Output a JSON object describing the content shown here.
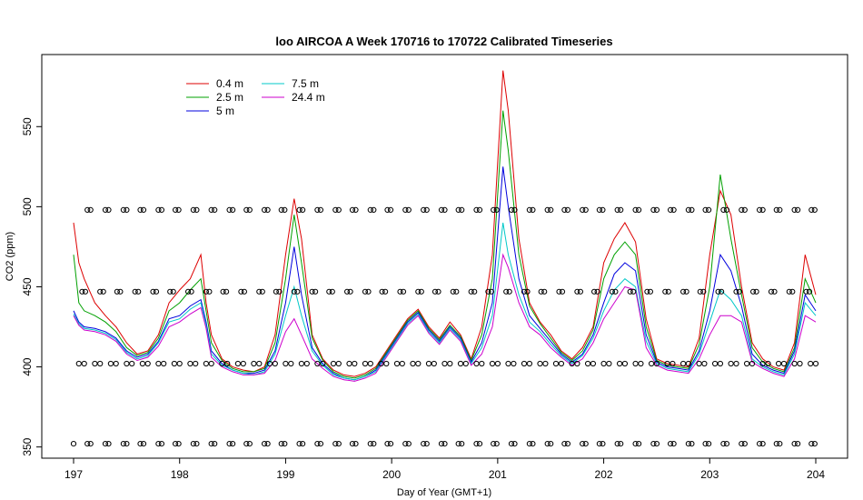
{
  "chart_data": {
    "type": "line",
    "title": "loo AIRCOA A  Week 170716 to 170722  Calibrated Timeseries",
    "xlabel": "Day of Year (GMT+1)",
    "ylabel": "CO2 (ppm)",
    "xlim": [
      196.7,
      204.3
    ],
    "ylim": [
      343,
      595
    ],
    "xticks": [
      197,
      198,
      199,
      200,
      201,
      202,
      203,
      204
    ],
    "yticks": [
      350,
      400,
      450,
      500,
      550
    ],
    "legend": {
      "placement": "top-left",
      "columns": [
        [
          "0.4 m",
          "2.5 m",
          "5 m"
        ],
        [
          "7.5 m",
          "24.4 m"
        ]
      ]
    },
    "series": [
      {
        "name": "0.4 m",
        "color": "#dd0000",
        "x": [
          197.0,
          197.05,
          197.1,
          197.2,
          197.3,
          197.4,
          197.5,
          197.6,
          197.7,
          197.8,
          197.9,
          198.0,
          198.1,
          198.2,
          198.25,
          198.3,
          198.4,
          198.5,
          198.6,
          198.7,
          198.8,
          198.9,
          199.0,
          199.08,
          199.15,
          199.25,
          199.35,
          199.45,
          199.55,
          199.65,
          199.75,
          199.85,
          199.95,
          200.05,
          200.15,
          200.25,
          200.35,
          200.45,
          200.55,
          200.65,
          200.75,
          200.85,
          200.95,
          201.05,
          201.1,
          201.2,
          201.3,
          201.4,
          201.5,
          201.6,
          201.7,
          201.8,
          201.9,
          202.0,
          202.1,
          202.2,
          202.3,
          202.4,
          202.5,
          202.6,
          202.7,
          202.8,
          202.9,
          203.0,
          203.1,
          203.2,
          203.3,
          203.4,
          203.5,
          203.6,
          203.7,
          203.8,
          203.9,
          204.0
        ],
        "y": [
          490,
          465,
          455,
          440,
          432,
          425,
          415,
          408,
          410,
          420,
          440,
          448,
          455,
          470,
          440,
          420,
          405,
          400,
          398,
          397,
          400,
          420,
          470,
          505,
          480,
          420,
          405,
          398,
          395,
          394,
          396,
          400,
          410,
          420,
          430,
          436,
          425,
          418,
          428,
          420,
          405,
          425,
          470,
          585,
          560,
          480,
          440,
          428,
          420,
          410,
          405,
          412,
          425,
          465,
          480,
          490,
          478,
          430,
          405,
          402,
          401,
          400,
          418,
          470,
          510,
          495,
          450,
          415,
          405,
          400,
          398,
          415,
          470,
          445
        ]
      },
      {
        "name": "2.5 m",
        "color": "#00a000",
        "x": [
          197.0,
          197.05,
          197.1,
          197.2,
          197.3,
          197.4,
          197.5,
          197.6,
          197.7,
          197.8,
          197.9,
          198.0,
          198.1,
          198.2,
          198.25,
          198.3,
          198.4,
          198.5,
          198.6,
          198.7,
          198.8,
          198.9,
          199.0,
          199.08,
          199.15,
          199.25,
          199.35,
          199.45,
          199.55,
          199.65,
          199.75,
          199.85,
          199.95,
          200.05,
          200.15,
          200.25,
          200.35,
          200.45,
          200.55,
          200.65,
          200.75,
          200.85,
          200.95,
          201.05,
          201.1,
          201.2,
          201.3,
          201.4,
          201.5,
          201.6,
          201.7,
          201.8,
          201.9,
          202.0,
          202.1,
          202.2,
          202.3,
          202.4,
          202.5,
          202.6,
          202.7,
          202.8,
          202.9,
          203.0,
          203.1,
          203.2,
          203.3,
          203.4,
          203.5,
          203.6,
          203.7,
          203.8,
          203.9,
          204.0
        ],
        "y": [
          470,
          440,
          435,
          432,
          428,
          422,
          412,
          407,
          409,
          418,
          435,
          440,
          448,
          455,
          435,
          415,
          404,
          399,
          397,
          397,
          399,
          415,
          455,
          495,
          465,
          418,
          404,
          397,
          394,
          393,
          395,
          399,
          409,
          419,
          429,
          435,
          424,
          417,
          426,
          419,
          404,
          420,
          455,
          560,
          535,
          470,
          438,
          427,
          418,
          409,
          404,
          410,
          423,
          455,
          470,
          478,
          470,
          425,
          404,
          401,
          400,
          399,
          414,
          450,
          520,
          480,
          445,
          412,
          403,
          399,
          397,
          412,
          455,
          440
        ]
      },
      {
        "name": "5 m",
        "color": "#0000dd",
        "x": [
          197.0,
          197.05,
          197.1,
          197.2,
          197.3,
          197.4,
          197.5,
          197.6,
          197.7,
          197.8,
          197.9,
          198.0,
          198.1,
          198.2,
          198.25,
          198.3,
          198.4,
          198.5,
          198.6,
          198.7,
          198.8,
          198.9,
          199.0,
          199.08,
          199.15,
          199.25,
          199.35,
          199.45,
          199.55,
          199.65,
          199.75,
          199.85,
          199.95,
          200.05,
          200.15,
          200.25,
          200.35,
          200.45,
          200.55,
          200.65,
          200.75,
          200.85,
          200.95,
          201.05,
          201.1,
          201.2,
          201.3,
          201.4,
          201.5,
          201.6,
          201.7,
          201.8,
          201.9,
          202.0,
          202.1,
          202.2,
          202.3,
          202.4,
          202.5,
          202.6,
          202.7,
          202.8,
          202.9,
          203.0,
          203.1,
          203.2,
          203.3,
          203.4,
          203.5,
          203.6,
          203.7,
          203.8,
          203.9,
          204.0
        ],
        "y": [
          435,
          428,
          425,
          424,
          422,
          418,
          410,
          406,
          408,
          416,
          430,
          432,
          438,
          442,
          428,
          410,
          402,
          398,
          396,
          396,
          398,
          410,
          440,
          475,
          445,
          412,
          402,
          396,
          393,
          392,
          394,
          398,
          408,
          418,
          428,
          434,
          423,
          416,
          425,
          418,
          403,
          415,
          440,
          525,
          500,
          455,
          432,
          424,
          416,
          408,
          403,
          408,
          420,
          440,
          458,
          465,
          460,
          420,
          403,
          400,
          399,
          398,
          410,
          435,
          470,
          460,
          438,
          408,
          401,
          398,
          396,
          410,
          445,
          435
        ]
      },
      {
        "name": "7.5 m",
        "color": "#00c8c8",
        "x": [
          197.0,
          197.05,
          197.1,
          197.2,
          197.3,
          197.4,
          197.5,
          197.6,
          197.7,
          197.8,
          197.9,
          198.0,
          198.1,
          198.2,
          198.25,
          198.3,
          198.4,
          198.5,
          198.6,
          198.7,
          198.8,
          198.9,
          199.0,
          199.08,
          199.15,
          199.25,
          199.35,
          199.45,
          199.55,
          199.65,
          199.75,
          199.85,
          199.95,
          200.05,
          200.15,
          200.25,
          200.35,
          200.45,
          200.55,
          200.65,
          200.75,
          200.85,
          200.95,
          201.05,
          201.1,
          201.2,
          201.3,
          201.4,
          201.5,
          201.6,
          201.7,
          201.8,
          201.9,
          202.0,
          202.1,
          202.2,
          202.3,
          202.4,
          202.5,
          202.6,
          202.7,
          202.8,
          202.9,
          203.0,
          203.1,
          203.2,
          203.3,
          203.4,
          203.5,
          203.6,
          203.7,
          203.8,
          203.9,
          204.0
        ],
        "y": [
          433,
          427,
          424,
          423,
          421,
          417,
          409,
          405,
          407,
          415,
          428,
          430,
          436,
          440,
          426,
          408,
          401,
          398,
          396,
          395,
          397,
          408,
          432,
          450,
          432,
          410,
          401,
          395,
          393,
          392,
          394,
          397,
          407,
          417,
          427,
          433,
          422,
          415,
          424,
          417,
          402,
          412,
          432,
          490,
          470,
          445,
          428,
          422,
          414,
          407,
          402,
          407,
          418,
          435,
          448,
          455,
          450,
          416,
          402,
          399,
          398,
          397,
          408,
          428,
          448,
          442,
          432,
          405,
          400,
          397,
          395,
          408,
          440,
          432
        ]
      },
      {
        "name": "24.4 m",
        "color": "#cc00cc",
        "x": [
          197.0,
          197.05,
          197.1,
          197.2,
          197.3,
          197.4,
          197.5,
          197.6,
          197.7,
          197.8,
          197.9,
          198.0,
          198.1,
          198.2,
          198.25,
          198.3,
          198.4,
          198.5,
          198.6,
          198.7,
          198.8,
          198.9,
          199.0,
          199.08,
          199.15,
          199.25,
          199.35,
          199.45,
          199.55,
          199.65,
          199.75,
          199.85,
          199.95,
          200.05,
          200.15,
          200.25,
          200.35,
          200.45,
          200.55,
          200.65,
          200.75,
          200.85,
          200.95,
          201.05,
          201.1,
          201.2,
          201.3,
          201.4,
          201.5,
          201.6,
          201.7,
          201.8,
          201.9,
          202.0,
          202.1,
          202.2,
          202.3,
          202.4,
          202.5,
          202.6,
          202.7,
          202.8,
          202.9,
          203.0,
          203.1,
          203.2,
          203.3,
          203.4,
          203.5,
          203.6,
          203.7,
          203.8,
          203.9,
          204.0
        ],
        "y": [
          432,
          426,
          423,
          422,
          420,
          416,
          408,
          404,
          406,
          413,
          425,
          428,
          433,
          437,
          424,
          406,
          400,
          397,
          395,
          395,
          396,
          404,
          422,
          430,
          420,
          405,
          399,
          394,
          392,
          391,
          393,
          396,
          406,
          416,
          426,
          432,
          421,
          414,
          423,
          416,
          401,
          408,
          425,
          470,
          462,
          440,
          425,
          420,
          412,
          406,
          401,
          405,
          415,
          430,
          440,
          450,
          448,
          412,
          401,
          398,
          397,
          396,
          405,
          420,
          432,
          432,
          428,
          403,
          399,
          396,
          394,
          405,
          432,
          428
        ]
      }
    ],
    "point_rows": [
      {
        "y": 498,
        "x": [
          197.13,
          197.16,
          197.3,
          197.33,
          197.47,
          197.5,
          197.63,
          197.66,
          197.8,
          197.83,
          197.96,
          197.99,
          198.13,
          198.16,
          198.3,
          198.33,
          198.47,
          198.5,
          198.63,
          198.66,
          198.8,
          198.83,
          198.96,
          198.99,
          199.13,
          199.16,
          199.3,
          199.33,
          199.47,
          199.5,
          199.63,
          199.66,
          199.8,
          199.83,
          199.96,
          199.99,
          200.13,
          200.16,
          200.3,
          200.33,
          200.47,
          200.5,
          200.63,
          200.66,
          200.8,
          200.83,
          200.96,
          200.99,
          201.13,
          201.16,
          201.3,
          201.33,
          201.47,
          201.5,
          201.63,
          201.66,
          201.8,
          201.83,
          201.96,
          201.99,
          202.13,
          202.16,
          202.3,
          202.33,
          202.47,
          202.5,
          202.63,
          202.66,
          202.8,
          202.83,
          202.96,
          202.99,
          203.13,
          203.16,
          203.3,
          203.33,
          203.47,
          203.5,
          203.63,
          203.66,
          203.8,
          203.83,
          203.96,
          203.99
        ]
      },
      {
        "y": 447,
        "x": [
          197.08,
          197.11,
          197.25,
          197.28,
          197.41,
          197.44,
          197.58,
          197.61,
          197.75,
          197.78,
          197.91,
          197.94,
          198.08,
          198.11,
          198.25,
          198.28,
          198.41,
          198.44,
          198.58,
          198.61,
          198.75,
          198.78,
          198.91,
          198.94,
          199.08,
          199.11,
          199.25,
          199.28,
          199.41,
          199.44,
          199.58,
          199.61,
          199.75,
          199.78,
          199.91,
          199.94,
          200.08,
          200.11,
          200.25,
          200.28,
          200.41,
          200.44,
          200.58,
          200.61,
          200.75,
          200.78,
          200.91,
          200.94,
          201.08,
          201.11,
          201.25,
          201.28,
          201.41,
          201.44,
          201.58,
          201.61,
          201.75,
          201.78,
          201.91,
          201.94,
          202.08,
          202.11,
          202.25,
          202.28,
          202.41,
          202.44,
          202.58,
          202.61,
          202.75,
          202.78,
          202.91,
          202.94,
          203.08,
          203.11,
          203.25,
          203.28,
          203.41,
          203.44,
          203.58,
          203.61,
          203.75,
          203.78,
          203.91,
          203.94
        ]
      },
      {
        "y": 402,
        "x": [
          197.05,
          197.1,
          197.2,
          197.25,
          197.35,
          197.4,
          197.5,
          197.55,
          197.65,
          197.7,
          197.8,
          197.85,
          197.95,
          198.0,
          198.1,
          198.15,
          198.25,
          198.3,
          198.4,
          198.45,
          198.55,
          198.6,
          198.7,
          198.75,
          198.85,
          198.9,
          199.0,
          199.05,
          199.15,
          199.2,
          199.3,
          199.35,
          199.45,
          199.5,
          199.6,
          199.65,
          199.75,
          199.8,
          199.9,
          199.95,
          200.05,
          200.1,
          200.2,
          200.25,
          200.35,
          200.4,
          200.5,
          200.55,
          200.65,
          200.7,
          200.8,
          200.85,
          200.95,
          201.0,
          201.1,
          201.15,
          201.25,
          201.3,
          201.4,
          201.45,
          201.55,
          201.6,
          201.7,
          201.75,
          201.85,
          201.9,
          202.0,
          202.05,
          202.15,
          202.2,
          202.3,
          202.35,
          202.45,
          202.5,
          202.6,
          202.65,
          202.75,
          202.8,
          202.9,
          202.95,
          203.05,
          203.1,
          203.2,
          203.25,
          203.35,
          203.4,
          203.5,
          203.55,
          203.65,
          203.7,
          203.8,
          203.85,
          203.95,
          204.0
        ]
      },
      {
        "y": 352,
        "x": [
          197.0,
          197.13,
          197.16,
          197.3,
          197.33,
          197.47,
          197.5,
          197.63,
          197.66,
          197.8,
          197.83,
          197.96,
          197.99,
          198.13,
          198.16,
          198.3,
          198.33,
          198.47,
          198.5,
          198.63,
          198.66,
          198.8,
          198.83,
          198.96,
          198.99,
          199.13,
          199.16,
          199.3,
          199.33,
          199.47,
          199.5,
          199.63,
          199.66,
          199.8,
          199.83,
          199.96,
          199.99,
          200.13,
          200.16,
          200.3,
          200.33,
          200.47,
          200.5,
          200.63,
          200.66,
          200.8,
          200.83,
          200.96,
          200.99,
          201.13,
          201.16,
          201.3,
          201.33,
          201.47,
          201.5,
          201.63,
          201.66,
          201.8,
          201.83,
          201.96,
          201.99,
          202.13,
          202.16,
          202.3,
          202.33,
          202.47,
          202.5,
          202.63,
          202.66,
          202.8,
          202.83,
          202.96,
          202.99,
          203.13,
          203.16,
          203.3,
          203.33,
          203.47,
          203.5,
          203.63,
          203.66,
          203.8,
          203.83,
          203.96,
          203.99
        ]
      }
    ],
    "grid": false
  }
}
